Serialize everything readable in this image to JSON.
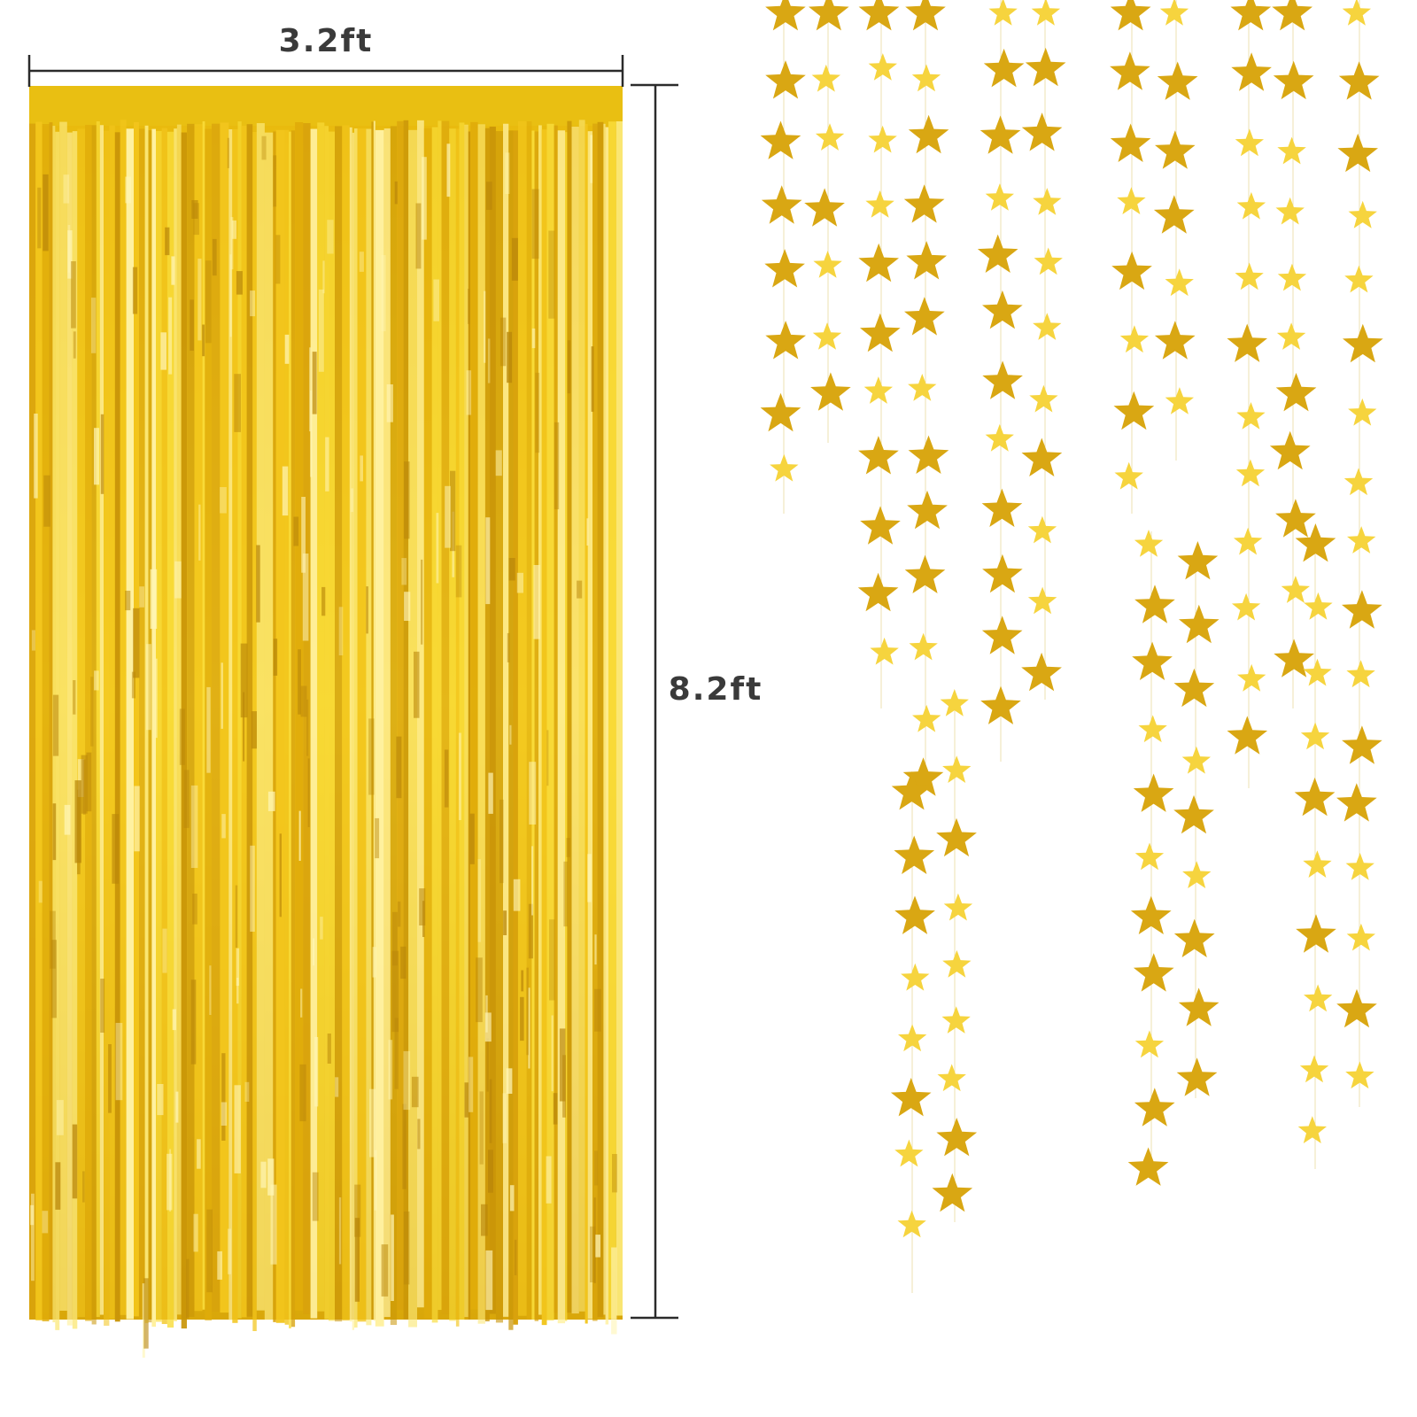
{
  "width_label": "3.2ft",
  "height_label": "8.2ft"
}
